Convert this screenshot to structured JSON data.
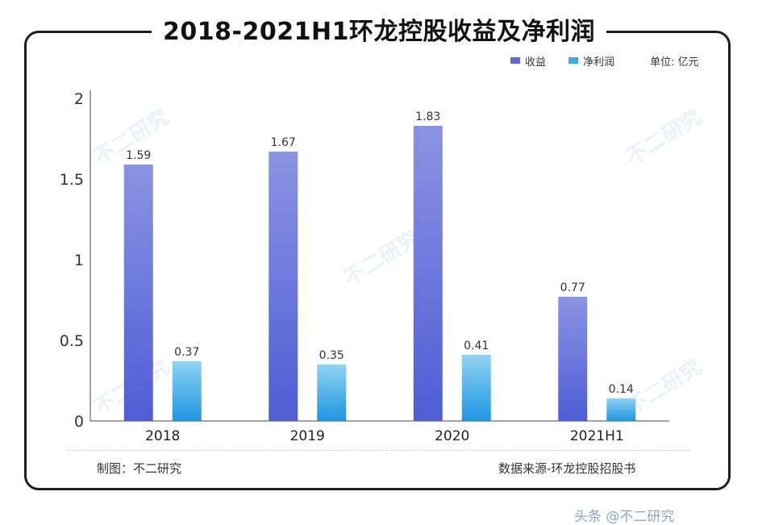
{
  "chart_data": {
    "type": "bar",
    "title": "2018-2021H1环龙控股收益及净利润",
    "unit_label": "单位: 亿元",
    "categories": [
      "2018",
      "2019",
      "2020",
      "2021H1"
    ],
    "series": [
      {
        "name": "收益",
        "values": [
          1.59,
          1.67,
          1.83,
          0.77
        ],
        "color": "#5b6ad8"
      },
      {
        "name": "净利润",
        "values": [
          0.37,
          0.35,
          0.41,
          0.14
        ],
        "color": "#3fa9e6"
      }
    ],
    "ylim": [
      0,
      2
    ],
    "yticks": [
      "0",
      "0.5",
      "1",
      "1.5",
      "2"
    ],
    "ytick_values": [
      0,
      0.5,
      1,
      1.5,
      2
    ],
    "data_labels": [
      [
        "1.59",
        "1.67",
        "1.83",
        "0.77"
      ],
      [
        "0.37",
        "0.35",
        "0.41",
        "0.14"
      ]
    ]
  },
  "footer": {
    "maker": "制图：不二研究",
    "source": "数据来源-环龙控股招股书"
  },
  "watermark": "不二研究",
  "bottom_partial": "头条 @不二研究"
}
